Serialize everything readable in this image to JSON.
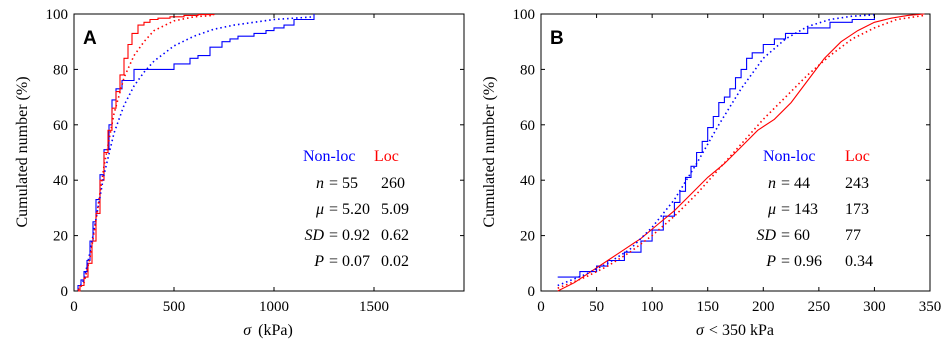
{
  "chart_data": [
    {
      "type": "line",
      "panel_label": "A",
      "xlabel_symbol": "σ",
      "xlabel_unit": "(kPa)",
      "ylabel": "Cumulated number (%)",
      "xlim": [
        0,
        1950
      ],
      "ylim": [
        0,
        100
      ],
      "xticks": [
        "0",
        "500",
        "1000",
        "1500"
      ],
      "xtick_values": [
        0,
        500,
        1000,
        1500
      ],
      "yticks": [
        "0",
        "20",
        "40",
        "60",
        "80",
        "100"
      ],
      "ytick_values": [
        0,
        20,
        40,
        60,
        80,
        100
      ],
      "series": [
        {
          "name": "Non-loc",
          "color": "#0000ff",
          "style": "step",
          "x": [
            0,
            20,
            35,
            50,
            65,
            80,
            95,
            110,
            130,
            150,
            175,
            190,
            210,
            240,
            300,
            450,
            500,
            580,
            620,
            680,
            740,
            780,
            820,
            900,
            960,
            1000,
            1050,
            1100,
            1200
          ],
          "y": [
            0,
            2,
            4,
            7,
            11,
            18,
            25,
            33,
            42,
            51,
            60,
            69,
            73,
            76,
            80,
            80,
            82,
            84,
            85,
            88,
            90,
            91,
            92,
            93,
            94,
            95,
            96,
            98,
            100
          ]
        },
        {
          "name": "Loc",
          "color": "#ff0000",
          "style": "step",
          "x": [
            0,
            30,
            50,
            70,
            90,
            110,
            130,
            150,
            170,
            190,
            210,
            230,
            250,
            270,
            290,
            320,
            350,
            380,
            420,
            480,
            550,
            620,
            700
          ],
          "y": [
            0,
            2,
            5,
            10,
            18,
            28,
            40,
            50,
            58,
            66,
            72,
            78,
            84,
            89,
            93,
            96,
            97,
            98,
            98.5,
            99,
            99.5,
            99.8,
            100
          ]
        },
        {
          "name": "Non-loc fit",
          "color": "#0000ff",
          "style": "dotted",
          "x": [
            20,
            50,
            80,
            100,
            150,
            200,
            250,
            300,
            350,
            400,
            500,
            600,
            700,
            800,
            900,
            1000,
            1100,
            1200
          ],
          "y": [
            0.5,
            4,
            14,
            22,
            42,
            57,
            67,
            74,
            79,
            83,
            88.5,
            92,
            94.5,
            96,
            97,
            98,
            98.5,
            99
          ]
        },
        {
          "name": "Loc fit",
          "color": "#ff0000",
          "style": "dotted",
          "x": [
            20,
            50,
            80,
            100,
            150,
            200,
            250,
            300,
            350,
            400,
            500,
            600,
            700
          ],
          "y": [
            0.3,
            3,
            12,
            21,
            45,
            64,
            77,
            85,
            90,
            94,
            97.5,
            99,
            99.5
          ]
        }
      ],
      "stats": {
        "header": {
          "nonloc": "Non-loc",
          "loc": "Loc"
        },
        "rows": [
          {
            "symbol": "n",
            "nonloc": "55",
            "loc": "260"
          },
          {
            "symbol": "μ",
            "nonloc": "5.20",
            "loc": "5.09"
          },
          {
            "symbol": "SD",
            "nonloc": "0.92",
            "loc": "0.62"
          },
          {
            "symbol": "P",
            "nonloc": "0.07",
            "loc": "0.02"
          }
        ]
      }
    },
    {
      "type": "line",
      "panel_label": "B",
      "xlabel_symbol": "σ",
      "xlabel_unit": "< 350 kPa",
      "ylabel": "Cumulated number (%)",
      "xlim": [
        0,
        350
      ],
      "ylim": [
        0,
        100
      ],
      "xticks": [
        "0",
        "50",
        "100",
        "150",
        "200",
        "250",
        "300",
        "350"
      ],
      "xtick_values": [
        0,
        50,
        100,
        150,
        200,
        250,
        300,
        350
      ],
      "yticks": [
        "0",
        "20",
        "40",
        "60",
        "80",
        "100"
      ],
      "ytick_values": [
        0,
        20,
        40,
        60,
        80,
        100
      ],
      "series": [
        {
          "name": "Non-loc",
          "color": "#0000ff",
          "style": "step",
          "x": [
            15,
            35,
            50,
            60,
            75,
            90,
            100,
            110,
            120,
            125,
            130,
            135,
            140,
            145,
            150,
            155,
            160,
            165,
            170,
            175,
            180,
            185,
            190,
            200,
            210,
            220,
            240,
            260,
            280,
            300
          ],
          "y": [
            5,
            7,
            9,
            11,
            14,
            18,
            22,
            27,
            32,
            36,
            41,
            45,
            50,
            54,
            59,
            63,
            68,
            70,
            73,
            77,
            80,
            84,
            86,
            89,
            91,
            93,
            95,
            97,
            98,
            100
          ]
        },
        {
          "name": "Loc",
          "color": "#ff0000",
          "style": "line",
          "x": [
            15,
            30,
            45,
            60,
            75,
            90,
            105,
            120,
            135,
            150,
            165,
            180,
            195,
            210,
            225,
            240,
            255,
            270,
            285,
            300,
            315,
            330,
            345
          ],
          "y": [
            0,
            3,
            7,
            11,
            15,
            19,
            24,
            29,
            35,
            41,
            46,
            52,
            58,
            62,
            68,
            76,
            84,
            90,
            94,
            97,
            98.5,
            99.5,
            100
          ]
        },
        {
          "name": "Non-loc fit",
          "color": "#0000ff",
          "style": "dotted",
          "x": [
            15,
            40,
            60,
            80,
            100,
            120,
            140,
            160,
            180,
            200,
            220,
            240,
            260,
            280,
            300
          ],
          "y": [
            2,
            6,
            10,
            15,
            23,
            33,
            46,
            60,
            73,
            84,
            91,
            95.5,
            98,
            99.2,
            99.7
          ]
        },
        {
          "name": "Loc fit",
          "color": "#ff0000",
          "style": "dotted",
          "x": [
            15,
            40,
            60,
            80,
            100,
            120,
            140,
            160,
            180,
            200,
            220,
            240,
            260,
            280,
            300,
            320,
            345
          ],
          "y": [
            1,
            5,
            9,
            14,
            20,
            27,
            35,
            44,
            53,
            62,
            70,
            78,
            85,
            91,
            95,
            98,
            99.5
          ]
        }
      ],
      "stats": {
        "header": {
          "nonloc": "Non-loc",
          "loc": "Loc"
        },
        "rows": [
          {
            "symbol": "n",
            "nonloc": "44",
            "loc": "243"
          },
          {
            "symbol": "μ",
            "nonloc": "143",
            "loc": "173"
          },
          {
            "symbol": "SD",
            "nonloc": "60",
            "loc": "77"
          },
          {
            "symbol": "P",
            "nonloc": "0.96",
            "loc": "0.34"
          }
        ]
      }
    }
  ]
}
